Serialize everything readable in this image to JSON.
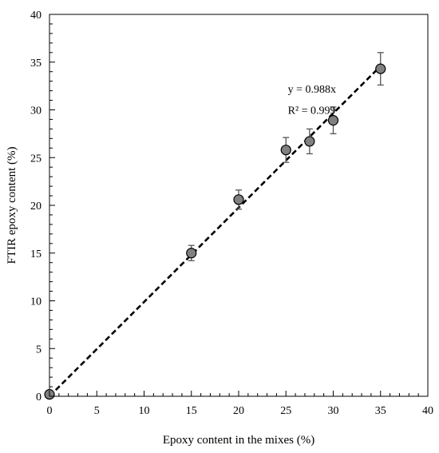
{
  "chart_data": {
    "type": "scatter",
    "title": "",
    "xlabel": "Epoxy content in the mixes (%)",
    "ylabel": "FTIR epoxy content (%)",
    "xlim": [
      0,
      40
    ],
    "ylim": [
      0,
      40
    ],
    "xticks": [
      0,
      5,
      10,
      15,
      20,
      25,
      30,
      35,
      40
    ],
    "yticks": [
      0,
      5,
      10,
      15,
      20,
      25,
      30,
      35,
      40
    ],
    "grid": false,
    "legend": "none",
    "series": [
      {
        "x": [
          0,
          15,
          20,
          25,
          27.5,
          30,
          35
        ],
        "y": [
          0.2,
          15.0,
          20.6,
          25.8,
          26.7,
          28.9,
          34.3
        ],
        "yerr": [
          0,
          0.8,
          1.0,
          1.3,
          1.3,
          1.4,
          1.7
        ],
        "marker_color": "#808080",
        "marker_edge": "#000000",
        "errorbar_color": "#555555"
      }
    ],
    "fit_line": {
      "slope": 0.988,
      "x_range": [
        0,
        35
      ],
      "style": "dashed",
      "color": "#000000"
    },
    "annotations": {
      "equation": "y = 0.988x",
      "r_squared": "R² = 0.999",
      "x": 25.2,
      "y_eq": 31.8,
      "y_r2": 29.6
    }
  }
}
